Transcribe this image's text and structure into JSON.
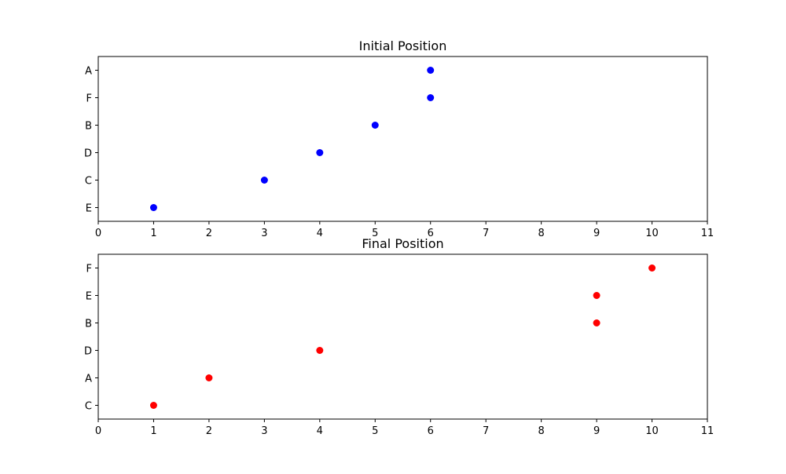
{
  "chart_data": [
    {
      "type": "scatter",
      "title": "Initial Position",
      "xlabel": "",
      "ylabel": "",
      "xlim": [
        0,
        11
      ],
      "x_ticks": [
        0,
        1,
        2,
        3,
        4,
        5,
        6,
        7,
        8,
        9,
        10,
        11
      ],
      "y_categories": [
        "E",
        "C",
        "D",
        "B",
        "F",
        "A"
      ],
      "grid": false,
      "color": "#0000ff",
      "points": [
        {
          "label": "E",
          "x": 1
        },
        {
          "label": "C",
          "x": 3
        },
        {
          "label": "D",
          "x": 4
        },
        {
          "label": "B",
          "x": 5
        },
        {
          "label": "F",
          "x": 6
        },
        {
          "label": "A",
          "x": 6
        }
      ]
    },
    {
      "type": "scatter",
      "title": "Final Position",
      "xlabel": "",
      "ylabel": "",
      "xlim": [
        0,
        11
      ],
      "x_ticks": [
        0,
        1,
        2,
        3,
        4,
        5,
        6,
        7,
        8,
        9,
        10,
        11
      ],
      "y_categories": [
        "C",
        "A",
        "D",
        "B",
        "E",
        "F"
      ],
      "grid": false,
      "color": "#ff0000",
      "points": [
        {
          "label": "C",
          "x": 1
        },
        {
          "label": "A",
          "x": 2
        },
        {
          "label": "D",
          "x": 4
        },
        {
          "label": "B",
          "x": 9
        },
        {
          "label": "E",
          "x": 9
        },
        {
          "label": "F",
          "x": 10
        }
      ]
    }
  ]
}
